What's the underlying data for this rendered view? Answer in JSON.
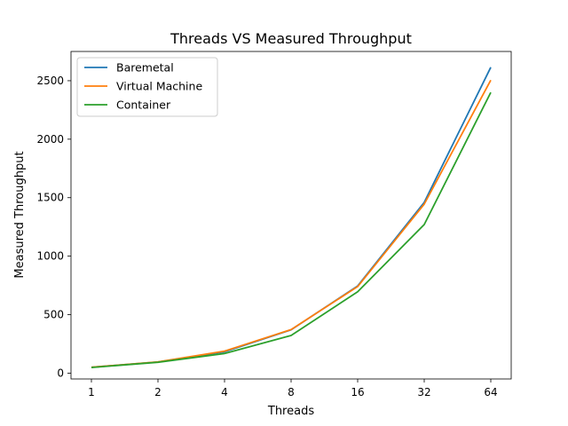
{
  "chart_data": {
    "type": "line",
    "title": "Threads VS Measured Throughput",
    "xlabel": "Threads",
    "ylabel": "Measured Throughput",
    "x": [
      "1",
      "2",
      "4",
      "8",
      "16",
      "32",
      "64"
    ],
    "y_ticks": [
      "0",
      "500",
      "1000",
      "1500",
      "2000",
      "2500"
    ],
    "ylim": [
      -50,
      2750
    ],
    "grid": false,
    "legend_position": "upper-left",
    "series": [
      {
        "name": "Baremetal",
        "color": "#1f77b4",
        "values": [
          50,
          95,
          182,
          370,
          745,
          1460,
          2615
        ]
      },
      {
        "name": "Virtual Machine",
        "color": "#ff7f0e",
        "values": [
          50,
          96,
          188,
          372,
          740,
          1445,
          2505
        ]
      },
      {
        "name": "Container",
        "color": "#2ca02c",
        "values": [
          48,
          93,
          168,
          322,
          695,
          1270,
          2400
        ]
      }
    ]
  }
}
